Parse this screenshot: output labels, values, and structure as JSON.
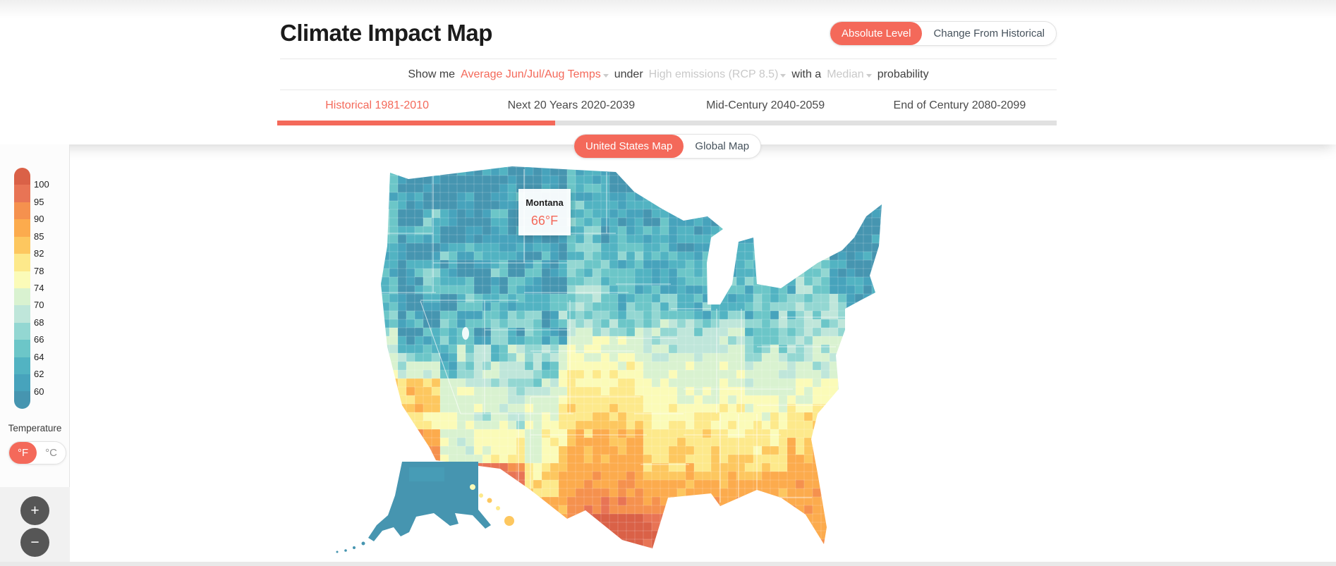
{
  "header": {
    "title": "Climate Impact Map",
    "level_toggle": {
      "options": [
        "Absolute Level",
        "Change From Historical"
      ],
      "selected": "Absolute Level"
    },
    "sentence": {
      "prefix": "Show me",
      "metric": "Average Jun/Jul/Aug Temps",
      "connector1": "under",
      "scenario": "High emissions (RCP 8.5)",
      "connector2": "with a",
      "probability": "Median",
      "suffix": "probability"
    },
    "tabs": [
      {
        "label": "Historical 1981-2010",
        "active": true
      },
      {
        "label": "Next 20 Years 2020-2039",
        "active": false
      },
      {
        "label": "Mid-Century 2040-2059",
        "active": false
      },
      {
        "label": "End of Century 2080-2099",
        "active": false
      }
    ]
  },
  "map": {
    "scope_toggle": {
      "options": [
        "United States Map",
        "Global Map"
      ],
      "selected": "United States Map"
    },
    "tooltip": {
      "region": "Montana",
      "value": "66°F"
    }
  },
  "legend": {
    "title": "Temperature",
    "ticks": [
      100,
      95,
      90,
      85,
      82,
      78,
      74,
      70,
      68,
      66,
      64,
      62,
      60
    ],
    "colors": [
      "#da6147",
      "#e87455",
      "#f5914e",
      "#fcab4d",
      "#fdc75f",
      "#fde98b",
      "#fbfbb8",
      "#d9f2d0",
      "#bfe6da",
      "#93d7d2",
      "#6cc6c8",
      "#52b3c2",
      "#47a3bc",
      "#4695b0"
    ],
    "units": {
      "fahrenheit": "°F",
      "celsius": "°C",
      "selected": "°F"
    }
  },
  "zoom_controls": {
    "zoom_in": "+",
    "zoom_out": "−"
  },
  "colors": {
    "accent": "#f4695a",
    "text_dark": "#3f3f3f",
    "text_muted": "#c9c9c9"
  }
}
